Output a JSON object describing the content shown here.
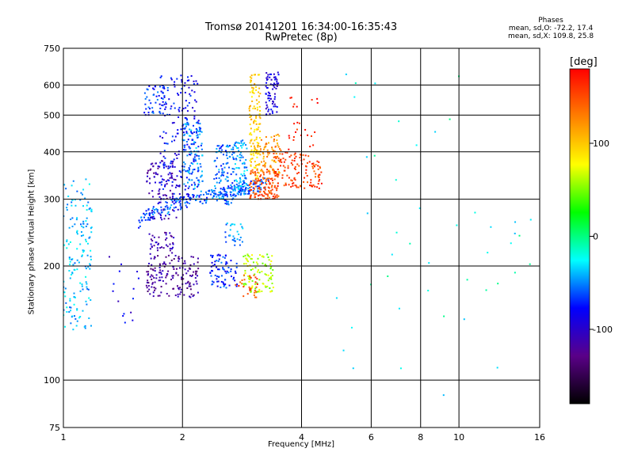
{
  "chart_data": {
    "type": "scatter",
    "title": "Tromsø 20141201 16:34:00-16:35:43",
    "subtitle": "RwPretec (8p)",
    "xlabel": "Frequency [MHz]",
    "ylabel": "Stationary phase Virtual Height [km]",
    "x_scale": "log",
    "y_scale": "log",
    "xlim": [
      1,
      16
    ],
    "ylim": [
      75,
      750
    ],
    "x_ticks": [
      {
        "value": 1,
        "label": "1"
      },
      {
        "value": 2,
        "label": "2"
      },
      {
        "value": 4,
        "label": "4"
      },
      {
        "value": 6,
        "label": "6"
      },
      {
        "value": 8,
        "label": "8"
      },
      {
        "value": 10,
        "label": "10"
      },
      {
        "value": 16,
        "label": "16"
      }
    ],
    "y_ticks": [
      {
        "value": 75,
        "label": "75"
      },
      {
        "value": 100,
        "label": "100"
      },
      {
        "value": 200,
        "label": "200"
      },
      {
        "value": 300,
        "label": "300"
      },
      {
        "value": 400,
        "label": "400"
      },
      {
        "value": 500,
        "label": "500"
      },
      {
        "value": 600,
        "label": "600"
      },
      {
        "value": 750,
        "label": "750"
      }
    ],
    "x_gridlines": [
      2,
      4,
      6,
      8,
      10
    ],
    "y_gridlines": [
      100,
      200,
      300,
      400,
      500,
      600
    ],
    "grid": true,
    "colorbar": {
      "label": "[deg]",
      "range": [
        -180,
        180
      ],
      "ticks": [
        {
          "value": 100,
          "label": "100"
        },
        {
          "value": 0,
          "label": "0"
        },
        {
          "value": -100,
          "label": "-100"
        }
      ],
      "colors": [
        "#000000",
        "#5a0088",
        "#0000ff",
        "#00ffff",
        "#00ff00",
        "#ffff00",
        "#ff8000",
        "#ff0000"
      ]
    },
    "phase_stats": {
      "heading": "Phases",
      "line_o": "mean, sd,O: -72.2, 17.4",
      "line_x": "mean, sd,X: 109.8, 25.8"
    },
    "clusters": [
      {
        "fmin": 1.0,
        "fmax": 1.18,
        "hmin": 135,
        "hmax": 340,
        "phase": -40,
        "count": 160,
        "shape": "box"
      },
      {
        "fmin": 1.55,
        "fmax": 3.3,
        "hmin": 262,
        "hmax": 330,
        "phase": -60,
        "count": 240,
        "shape": "curve"
      },
      {
        "fmin": 1.62,
        "fmax": 1.95,
        "hmin": 265,
        "hmax": 380,
        "phase": -110,
        "count": 90,
        "shape": "box"
      },
      {
        "fmin": 1.75,
        "fmax": 2.2,
        "hmin": 300,
        "hmax": 640,
        "phase": -80,
        "count": 200,
        "shape": "box"
      },
      {
        "fmin": 1.6,
        "fmax": 1.85,
        "hmin": 500,
        "hmax": 600,
        "phase": -70,
        "count": 50,
        "shape": "box"
      },
      {
        "fmin": 2.0,
        "fmax": 2.25,
        "hmin": 320,
        "hmax": 480,
        "phase": -50,
        "count": 110,
        "shape": "box"
      },
      {
        "fmin": 2.4,
        "fmax": 2.7,
        "hmin": 290,
        "hmax": 420,
        "phase": -55,
        "count": 110,
        "shape": "box"
      },
      {
        "fmin": 2.7,
        "fmax": 2.92,
        "hmin": 305,
        "hmax": 430,
        "phase": -45,
        "count": 90,
        "shape": "box"
      },
      {
        "fmin": 2.95,
        "fmax": 3.15,
        "hmin": 340,
        "hmax": 640,
        "phase": 95,
        "count": 130,
        "shape": "box"
      },
      {
        "fmin": 2.95,
        "fmax": 3.5,
        "hmin": 300,
        "hmax": 360,
        "phase": 150,
        "count": 130,
        "shape": "box"
      },
      {
        "fmin": 3.1,
        "fmax": 3.55,
        "hmin": 350,
        "hmax": 450,
        "phase": 120,
        "count": 80,
        "shape": "box"
      },
      {
        "fmin": 3.25,
        "fmax": 3.5,
        "hmin": 500,
        "hmax": 650,
        "phase": -90,
        "count": 70,
        "shape": "box"
      },
      {
        "fmin": 3.4,
        "fmax": 4.5,
        "hmin": 320,
        "hmax": 400,
        "phase": 155,
        "count": 130,
        "shape": "box"
      },
      {
        "fmin": 3.7,
        "fmax": 4.4,
        "hmin": 400,
        "hmax": 560,
        "phase": 170,
        "count": 25,
        "shape": "box"
      },
      {
        "fmin": 1.62,
        "fmax": 2.2,
        "hmin": 165,
        "hmax": 215,
        "phase": -120,
        "count": 160,
        "shape": "box"
      },
      {
        "fmin": 1.65,
        "fmax": 1.9,
        "hmin": 215,
        "hmax": 245,
        "phase": -110,
        "count": 40,
        "shape": "box"
      },
      {
        "fmin": 2.35,
        "fmax": 2.75,
        "hmin": 175,
        "hmax": 215,
        "phase": -70,
        "count": 80,
        "shape": "box"
      },
      {
        "fmin": 2.55,
        "fmax": 2.85,
        "hmin": 225,
        "hmax": 260,
        "phase": -50,
        "count": 30,
        "shape": "box"
      },
      {
        "fmin": 2.85,
        "fmax": 3.4,
        "hmin": 170,
        "hmax": 215,
        "phase": 60,
        "count": 100,
        "shape": "box"
      },
      {
        "fmin": 2.7,
        "fmax": 3.1,
        "hmin": 165,
        "hmax": 190,
        "phase": 150,
        "count": 30,
        "shape": "box"
      },
      {
        "fmin": 1.3,
        "fmax": 1.6,
        "hmin": 140,
        "hmax": 220,
        "phase": -90,
        "count": 15,
        "shape": "box"
      },
      {
        "fmin": 4.5,
        "fmax": 15.5,
        "hmin": 90,
        "hmax": 700,
        "phase": -20,
        "count": 45,
        "shape": "box"
      }
    ]
  }
}
